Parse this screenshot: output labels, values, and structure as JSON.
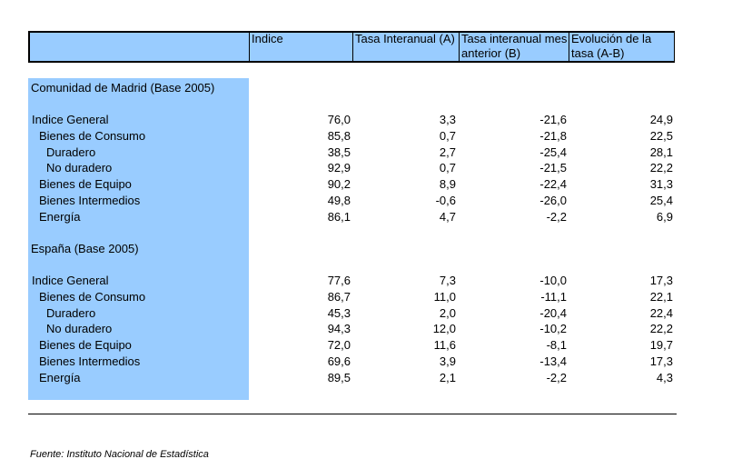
{
  "header": {
    "col1": "Indice",
    "col2": "Tasa Interanual (A)",
    "col3": "Tasa interanual mes anterior (B)",
    "col4": "Evolución de la tasa (A-B)"
  },
  "sections": [
    {
      "title": "Comunidad de Madrid (Base 2005)",
      "rows": [
        {
          "label": "Indice General",
          "indent": 0,
          "v": [
            "76,0",
            "3,3",
            "-21,6",
            "24,9"
          ]
        },
        {
          "label": "Bienes de Consumo",
          "indent": 1,
          "v": [
            "85,8",
            "0,7",
            "-21,8",
            "22,5"
          ]
        },
        {
          "label": "Duradero",
          "indent": 2,
          "v": [
            "38,5",
            "2,7",
            "-25,4",
            "28,1"
          ]
        },
        {
          "label": "No duradero",
          "indent": 2,
          "v": [
            "92,9",
            "0,7",
            "-21,5",
            "22,2"
          ]
        },
        {
          "label": "Bienes de Equipo",
          "indent": 1,
          "v": [
            "90,2",
            "8,9",
            "-22,4",
            "31,3"
          ]
        },
        {
          "label": "Bienes Intermedios",
          "indent": 1,
          "v": [
            "49,8",
            "-0,6",
            "-26,0",
            "25,4"
          ]
        },
        {
          "label": "Energía",
          "indent": 1,
          "v": [
            "86,1",
            "4,7",
            "-2,2",
            "6,9"
          ]
        }
      ]
    },
    {
      "title": "España (Base 2005)",
      "rows": [
        {
          "label": "Indice General",
          "indent": 0,
          "v": [
            "77,6",
            "7,3",
            "-10,0",
            "17,3"
          ]
        },
        {
          "label": "Bienes de Consumo",
          "indent": 1,
          "v": [
            "86,7",
            "11,0",
            "-11,1",
            "22,1"
          ]
        },
        {
          "label": "Duradero",
          "indent": 2,
          "v": [
            "45,3",
            "2,0",
            "-20,4",
            "22,4"
          ]
        },
        {
          "label": "No duradero",
          "indent": 2,
          "v": [
            "94,3",
            "12,0",
            "-10,2",
            "22,2"
          ]
        },
        {
          "label": "Bienes de Equipo",
          "indent": 1,
          "v": [
            "72,0",
            "11,6",
            "-8,1",
            "19,7"
          ]
        },
        {
          "label": "Bienes Intermedios",
          "indent": 1,
          "v": [
            "69,6",
            "3,9",
            "-13,4",
            "17,3"
          ]
        },
        {
          "label": "Energía",
          "indent": 1,
          "v": [
            "89,5",
            "2,1",
            "-2,2",
            "4,3"
          ]
        }
      ]
    }
  ],
  "footnote": "Fuente: Instituto Nacional de Estadística",
  "colors": {
    "header_fill": "#99ccff",
    "stub_fill": "#99ccff"
  }
}
